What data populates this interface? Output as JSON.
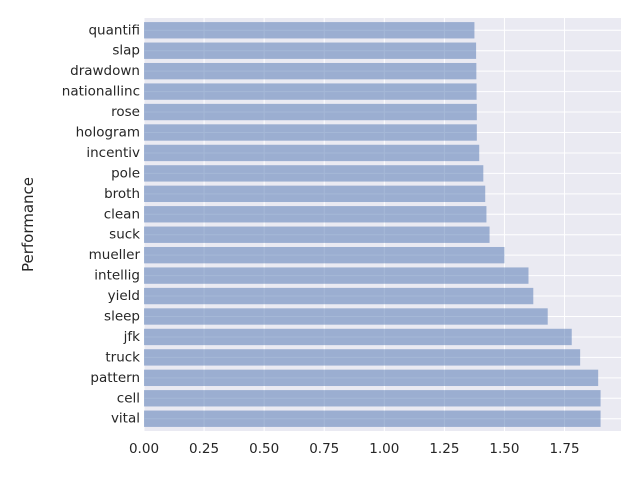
{
  "chart_data": {
    "type": "bar",
    "orientation": "horizontal",
    "title": "",
    "xlabel": "",
    "ylabel": "Performance",
    "categories": [
      "quantifi",
      "slap",
      "drawdown",
      "nationallinc",
      "rose",
      "hologram",
      "incentiv",
      "pole",
      "broth",
      "clean",
      "suck",
      "mueller",
      "intellig",
      "yield",
      "sleep",
      "jfk",
      "truck",
      "pattern",
      "cell",
      "vital"
    ],
    "values": [
      1.375,
      1.382,
      1.383,
      1.384,
      1.385,
      1.385,
      1.395,
      1.412,
      1.42,
      1.425,
      1.438,
      1.5,
      1.6,
      1.62,
      1.68,
      1.78,
      1.815,
      1.89,
      1.9,
      1.9
    ],
    "xlim": [
      0,
      1.985
    ],
    "xticks": [
      0.0,
      0.25,
      0.5,
      0.75,
      1.0,
      1.25,
      1.5,
      1.75
    ],
    "xtick_labels": [
      "0.00",
      "0.25",
      "0.50",
      "0.75",
      "1.00",
      "1.25",
      "1.50",
      "1.75"
    ],
    "grid": true,
    "colors": {
      "bar": "#4c72b0",
      "plot_background": "#eaeaf2",
      "grid": "#ffffff"
    }
  }
}
